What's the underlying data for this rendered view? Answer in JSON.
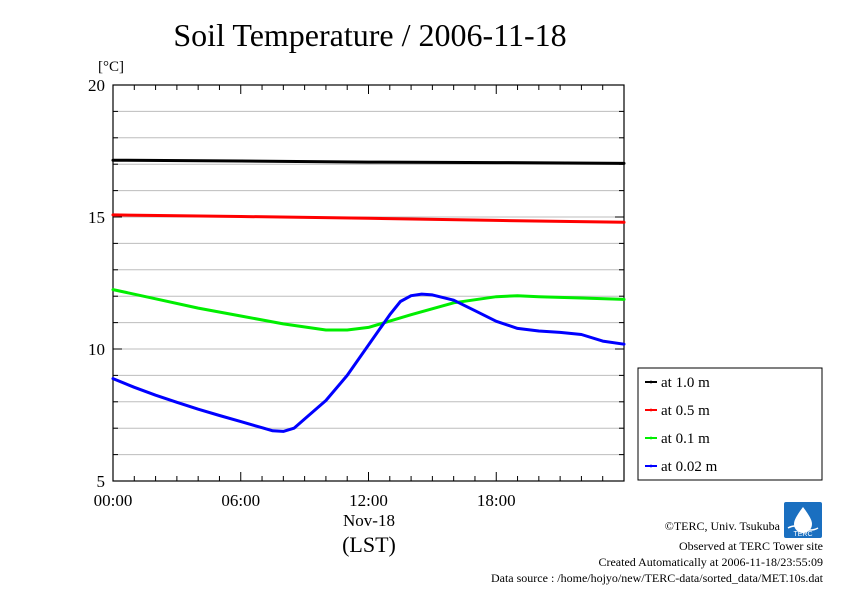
{
  "chart_data": {
    "type": "line",
    "title": "Soil Temperature / 2006-11-18",
    "ylabel": "[°C]",
    "xlabel": "(LST)",
    "date_label": "Nov-18",
    "ylim": [
      5,
      20
    ],
    "xlim": [
      0,
      24
    ],
    "y_ticks": [
      5,
      10,
      15,
      20
    ],
    "x_ticks": [
      0,
      6,
      12,
      18
    ],
    "x_tick_labels": [
      "00:00",
      "06:00",
      "12:00",
      "18:00"
    ],
    "grid": true,
    "legend_position": "right",
    "series": [
      {
        "name": "at 1.0 m",
        "color": "#000000",
        "points": [
          [
            0,
            17.15
          ],
          [
            6,
            17.12
          ],
          [
            12,
            17.08
          ],
          [
            18,
            17.06
          ],
          [
            24,
            17.03
          ]
        ]
      },
      {
        "name": "at 0.5 m",
        "color": "#ff0000",
        "points": [
          [
            0,
            15.08
          ],
          [
            6,
            15.02
          ],
          [
            12,
            14.95
          ],
          [
            18,
            14.87
          ],
          [
            24,
            14.8
          ]
        ]
      },
      {
        "name": "at 0.1 m",
        "color": "#00ee00",
        "points": [
          [
            0,
            12.25
          ],
          [
            2,
            11.9
          ],
          [
            4,
            11.55
          ],
          [
            6,
            11.25
          ],
          [
            8,
            10.95
          ],
          [
            10,
            10.72
          ],
          [
            11,
            10.72
          ],
          [
            12,
            10.82
          ],
          [
            14,
            11.3
          ],
          [
            16,
            11.75
          ],
          [
            18,
            11.98
          ],
          [
            19,
            12.02
          ],
          [
            20,
            11.98
          ],
          [
            22,
            11.93
          ],
          [
            24,
            11.88
          ]
        ]
      },
      {
        "name": "at 0.02 m",
        "color": "#0000ff",
        "points": [
          [
            0,
            8.88
          ],
          [
            1,
            8.55
          ],
          [
            2,
            8.25
          ],
          [
            3,
            7.98
          ],
          [
            4,
            7.72
          ],
          [
            5,
            7.48
          ],
          [
            6,
            7.25
          ],
          [
            7,
            7.02
          ],
          [
            7.5,
            6.9
          ],
          [
            8,
            6.88
          ],
          [
            8.5,
            7.0
          ],
          [
            9,
            7.35
          ],
          [
            10,
            8.05
          ],
          [
            11,
            9.0
          ],
          [
            12,
            10.15
          ],
          [
            13,
            11.3
          ],
          [
            13.5,
            11.8
          ],
          [
            14,
            12.02
          ],
          [
            14.5,
            12.08
          ],
          [
            15,
            12.05
          ],
          [
            16,
            11.85
          ],
          [
            17,
            11.45
          ],
          [
            18,
            11.05
          ],
          [
            19,
            10.78
          ],
          [
            20,
            10.68
          ],
          [
            21,
            10.63
          ],
          [
            22,
            10.55
          ],
          [
            23,
            10.3
          ],
          [
            24,
            10.18
          ]
        ]
      }
    ]
  },
  "footer": {
    "copyright": "©TERC, Univ. Tsukuba",
    "site": "Observed at TERC Tower site",
    "created": "Created Automatically at 2006-11-18/23:55:09",
    "source": "Data source : /home/hojyo/new/TERC-data/sorted_data/MET.10s.dat",
    "logo_text": "TERC"
  }
}
